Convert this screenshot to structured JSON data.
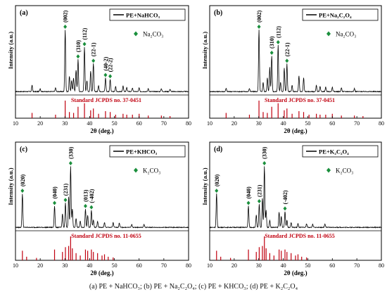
{
  "caption": "(a) PE + NaHCO₃; (b) PE + Na₂C₂O₄; (c) PE + KHCO₃; (d) PE + K₂C₂O₄",
  "colors": {
    "pattern": "#000000",
    "reference": "#c0000f",
    "marker": "#1a8f3c",
    "frame": "#000000"
  },
  "chart_data": [
    {
      "type": "line",
      "panel_label": "(a)",
      "xlabel": "2θ (deg.)",
      "ylabel": "Intensity (a.u.)",
      "xlim": [
        10,
        80
      ],
      "xticks": [
        10,
        20,
        30,
        40,
        50,
        60,
        70,
        80
      ],
      "legend": {
        "entries": [
          "PE+NaHCO₃"
        ],
        "position": "top-right"
      },
      "marker_label": "Na₂CO₃",
      "reference_label": "Standard JCPDS no. 37-0451",
      "peaks": [
        {
          "x": 16.7,
          "y": 0.1
        },
        {
          "x": 20.0,
          "y": 0.05
        },
        {
          "x": 26.2,
          "y": 0.06
        },
        {
          "x": 30.1,
          "y": 1.0
        },
        {
          "x": 31.8,
          "y": 0.25
        },
        {
          "x": 32.7,
          "y": 0.18
        },
        {
          "x": 33.5,
          "y": 0.22
        },
        {
          "x": 34.5,
          "y": 0.35
        },
        {
          "x": 35.3,
          "y": 0.52
        },
        {
          "x": 37.9,
          "y": 0.72
        },
        {
          "x": 38.9,
          "y": 0.18
        },
        {
          "x": 40.4,
          "y": 0.33
        },
        {
          "x": 41.5,
          "y": 0.45
        },
        {
          "x": 43.6,
          "y": 0.1
        },
        {
          "x": 46.4,
          "y": 0.22
        },
        {
          "x": 48.3,
          "y": 0.2
        },
        {
          "x": 50.5,
          "y": 0.08
        },
        {
          "x": 53.5,
          "y": 0.09
        },
        {
          "x": 55.0,
          "y": 0.07
        },
        {
          "x": 57.3,
          "y": 0.06
        },
        {
          "x": 60.0,
          "y": 0.06
        },
        {
          "x": 63.7,
          "y": 0.05
        },
        {
          "x": 69.0,
          "y": 0.05
        },
        {
          "x": 72.5,
          "y": 0.04
        }
      ],
      "annotations": [
        {
          "x": 30.1,
          "label": "(002)"
        },
        {
          "x": 35.3,
          "label": "(310)"
        },
        {
          "x": 37.9,
          "label": "(112)"
        },
        {
          "x": 41.5,
          "label": "(22-1)"
        },
        {
          "x": 46.4,
          "label": "(40-2)"
        },
        {
          "x": 48.3,
          "label": "(22-2)"
        }
      ],
      "reference_sticks": [
        {
          "x": 16.7,
          "y": 0.3
        },
        {
          "x": 26.2,
          "y": 0.2
        },
        {
          "x": 30.1,
          "y": 1.0
        },
        {
          "x": 31.8,
          "y": 0.35
        },
        {
          "x": 33.5,
          "y": 0.3
        },
        {
          "x": 35.3,
          "y": 0.65
        },
        {
          "x": 37.9,
          "y": 0.85
        },
        {
          "x": 40.4,
          "y": 0.45
        },
        {
          "x": 41.5,
          "y": 0.55
        },
        {
          "x": 43.6,
          "y": 0.25
        },
        {
          "x": 46.4,
          "y": 0.4
        },
        {
          "x": 48.3,
          "y": 0.35
        },
        {
          "x": 50.5,
          "y": 0.2
        },
        {
          "x": 53.5,
          "y": 0.25
        },
        {
          "x": 55.0,
          "y": 0.2
        },
        {
          "x": 57.3,
          "y": 0.2
        },
        {
          "x": 60.0,
          "y": 0.25
        },
        {
          "x": 63.7,
          "y": 0.15
        },
        {
          "x": 69.0,
          "y": 0.15
        },
        {
          "x": 72.5,
          "y": 0.12
        }
      ]
    },
    {
      "type": "line",
      "panel_label": "(b)",
      "xlabel": "2θ (deg.)",
      "ylabel": "Intensity (a.u.)",
      "xlim": [
        10,
        80
      ],
      "xticks": [
        10,
        20,
        30,
        40,
        50,
        60,
        70,
        80
      ],
      "legend": {
        "entries": [
          "PE+Na₂C₂O₄"
        ],
        "position": "top-right"
      },
      "marker_label": "Na₂CO₃",
      "reference_label": "Standard JCPDS no. 37-0451",
      "peaks": [
        {
          "x": 16.7,
          "y": 0.05
        },
        {
          "x": 26.2,
          "y": 0.05
        },
        {
          "x": 30.1,
          "y": 1.0
        },
        {
          "x": 31.8,
          "y": 0.15
        },
        {
          "x": 33.5,
          "y": 0.22
        },
        {
          "x": 34.5,
          "y": 0.4
        },
        {
          "x": 35.3,
          "y": 0.58
        },
        {
          "x": 37.9,
          "y": 0.75
        },
        {
          "x": 38.9,
          "y": 0.15
        },
        {
          "x": 40.4,
          "y": 0.38
        },
        {
          "x": 41.5,
          "y": 0.45
        },
        {
          "x": 43.6,
          "y": 0.1
        },
        {
          "x": 46.4,
          "y": 0.25
        },
        {
          "x": 48.3,
          "y": 0.22
        },
        {
          "x": 53.5,
          "y": 0.1
        },
        {
          "x": 55.0,
          "y": 0.08
        },
        {
          "x": 57.3,
          "y": 0.07
        },
        {
          "x": 60.0,
          "y": 0.07
        },
        {
          "x": 63.7,
          "y": 0.06
        },
        {
          "x": 69.0,
          "y": 0.05
        }
      ],
      "annotations": [
        {
          "x": 30.1,
          "label": "(002)"
        },
        {
          "x": 35.3,
          "label": "(310)"
        },
        {
          "x": 37.9,
          "label": "(112)"
        },
        {
          "x": 41.5,
          "label": "(22-1)"
        }
      ],
      "reference_sticks": [
        {
          "x": 16.7,
          "y": 0.3
        },
        {
          "x": 26.2,
          "y": 0.2
        },
        {
          "x": 30.1,
          "y": 1.0
        },
        {
          "x": 31.8,
          "y": 0.35
        },
        {
          "x": 33.5,
          "y": 0.3
        },
        {
          "x": 35.3,
          "y": 0.65
        },
        {
          "x": 37.9,
          "y": 0.85
        },
        {
          "x": 40.4,
          "y": 0.45
        },
        {
          "x": 41.5,
          "y": 0.55
        },
        {
          "x": 43.6,
          "y": 0.25
        },
        {
          "x": 46.4,
          "y": 0.4
        },
        {
          "x": 48.3,
          "y": 0.35
        },
        {
          "x": 50.5,
          "y": 0.2
        },
        {
          "x": 53.5,
          "y": 0.25
        },
        {
          "x": 55.0,
          "y": 0.2
        },
        {
          "x": 57.3,
          "y": 0.2
        },
        {
          "x": 60.0,
          "y": 0.25
        },
        {
          "x": 63.7,
          "y": 0.15
        },
        {
          "x": 69.0,
          "y": 0.15
        },
        {
          "x": 72.5,
          "y": 0.12
        }
      ]
    },
    {
      "type": "line",
      "panel_label": "(c)",
      "xlabel": "2θ (deg.)",
      "ylabel": "Intensity (a.u.)",
      "xlim": [
        10,
        80
      ],
      "xticks": [
        10,
        20,
        30,
        40,
        50,
        60,
        70,
        80
      ],
      "legend": {
        "entries": [
          "PE+KHCO₃"
        ],
        "position": "top-right"
      },
      "marker_label": "K₂CO₃",
      "reference_label": "Standard JCPDS no. 11-0655",
      "peaks": [
        {
          "x": 12.8,
          "y": 0.55
        },
        {
          "x": 25.8,
          "y": 0.35
        },
        {
          "x": 29.0,
          "y": 0.22
        },
        {
          "x": 30.2,
          "y": 0.4
        },
        {
          "x": 31.5,
          "y": 0.5
        },
        {
          "x": 32.3,
          "y": 1.0
        },
        {
          "x": 33.0,
          "y": 0.3
        },
        {
          "x": 34.5,
          "y": 0.15
        },
        {
          "x": 36.2,
          "y": 0.1
        },
        {
          "x": 38.3,
          "y": 0.3
        },
        {
          "x": 39.2,
          "y": 0.2
        },
        {
          "x": 40.7,
          "y": 0.28
        },
        {
          "x": 41.5,
          "y": 0.12
        },
        {
          "x": 43.2,
          "y": 0.1
        },
        {
          "x": 46.0,
          "y": 0.08
        },
        {
          "x": 49.5,
          "y": 0.08
        },
        {
          "x": 52.0,
          "y": 0.07
        },
        {
          "x": 57.0,
          "y": 0.05
        },
        {
          "x": 62.0,
          "y": 0.05
        }
      ],
      "annotations": [
        {
          "x": 12.8,
          "label": "(020)"
        },
        {
          "x": 25.8,
          "label": "(040)"
        },
        {
          "x": 30.2,
          "label": "(231)"
        },
        {
          "x": 32.3,
          "label": "(330)"
        },
        {
          "x": 38.3,
          "label": "(013)"
        },
        {
          "x": 40.7,
          "label": "(-402)"
        }
      ],
      "reference_sticks": [
        {
          "x": 12.8,
          "y": 0.4
        },
        {
          "x": 14.5,
          "y": 0.15
        },
        {
          "x": 18.5,
          "y": 0.1
        },
        {
          "x": 25.8,
          "y": 0.45
        },
        {
          "x": 29.0,
          "y": 0.35
        },
        {
          "x": 30.2,
          "y": 0.55
        },
        {
          "x": 31.5,
          "y": 0.6
        },
        {
          "x": 32.3,
          "y": 1.0
        },
        {
          "x": 33.0,
          "y": 0.5
        },
        {
          "x": 34.5,
          "y": 0.3
        },
        {
          "x": 36.2,
          "y": 0.2
        },
        {
          "x": 38.3,
          "y": 0.45
        },
        {
          "x": 39.2,
          "y": 0.4
        },
        {
          "x": 40.7,
          "y": 0.45
        },
        {
          "x": 41.5,
          "y": 0.35
        },
        {
          "x": 43.2,
          "y": 0.3
        },
        {
          "x": 45.0,
          "y": 0.2
        },
        {
          "x": 46.0,
          "y": 0.25
        },
        {
          "x": 47.5,
          "y": 0.15
        },
        {
          "x": 49.5,
          "y": 0.12
        }
      ]
    },
    {
      "type": "line",
      "panel_label": "(d)",
      "xlabel": "2θ (deg.)",
      "ylabel": "Intensity (a.u.)",
      "xlim": [
        10,
        80
      ],
      "xticks": [
        10,
        20,
        30,
        40,
        50,
        60,
        70,
        80
      ],
      "legend": {
        "entries": [
          "PE+K₂C₂O₄"
        ],
        "position": "top-right"
      },
      "marker_label": "K₂CO₃",
      "reference_label": "Standard JCPDS no. 11-0655",
      "peaks": [
        {
          "x": 12.8,
          "y": 0.55
        },
        {
          "x": 25.8,
          "y": 0.35
        },
        {
          "x": 29.0,
          "y": 0.2
        },
        {
          "x": 30.2,
          "y": 0.38
        },
        {
          "x": 31.5,
          "y": 0.48
        },
        {
          "x": 32.3,
          "y": 1.0
        },
        {
          "x": 33.0,
          "y": 0.28
        },
        {
          "x": 34.5,
          "y": 0.12
        },
        {
          "x": 38.3,
          "y": 0.25
        },
        {
          "x": 39.2,
          "y": 0.18
        },
        {
          "x": 40.7,
          "y": 0.26
        },
        {
          "x": 41.5,
          "y": 0.12
        },
        {
          "x": 43.2,
          "y": 0.08
        },
        {
          "x": 46.0,
          "y": 0.06
        },
        {
          "x": 49.5,
          "y": 0.06
        },
        {
          "x": 52.0,
          "y": 0.05
        },
        {
          "x": 57.0,
          "y": 0.05
        }
      ],
      "annotations": [
        {
          "x": 12.8,
          "label": "(020)"
        },
        {
          "x": 25.8,
          "label": "(040)"
        },
        {
          "x": 30.2,
          "label": "(231)"
        },
        {
          "x": 32.3,
          "label": "(330)"
        },
        {
          "x": 40.7,
          "label": "(-402)"
        }
      ],
      "reference_sticks": [
        {
          "x": 12.8,
          "y": 0.4
        },
        {
          "x": 14.5,
          "y": 0.15
        },
        {
          "x": 18.5,
          "y": 0.1
        },
        {
          "x": 25.8,
          "y": 0.45
        },
        {
          "x": 29.0,
          "y": 0.35
        },
        {
          "x": 30.2,
          "y": 0.55
        },
        {
          "x": 31.5,
          "y": 0.6
        },
        {
          "x": 32.3,
          "y": 1.0
        },
        {
          "x": 33.0,
          "y": 0.5
        },
        {
          "x": 34.5,
          "y": 0.3
        },
        {
          "x": 36.2,
          "y": 0.2
        },
        {
          "x": 38.3,
          "y": 0.45
        },
        {
          "x": 39.2,
          "y": 0.4
        },
        {
          "x": 40.7,
          "y": 0.45
        },
        {
          "x": 41.5,
          "y": 0.35
        },
        {
          "x": 43.2,
          "y": 0.3
        },
        {
          "x": 45.0,
          "y": 0.2
        },
        {
          "x": 46.0,
          "y": 0.25
        },
        {
          "x": 47.5,
          "y": 0.15
        },
        {
          "x": 49.5,
          "y": 0.12
        }
      ]
    }
  ]
}
